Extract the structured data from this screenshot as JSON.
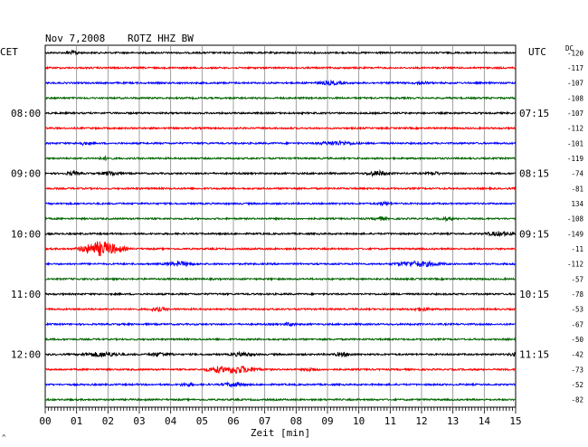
{
  "header": {
    "date": "Nov 7,2008",
    "station": "ROTZ HHZ BW",
    "left_zone": "CET",
    "right_zone": "UTC",
    "dc_label": "DC"
  },
  "chart_data": {
    "type": "line",
    "title": "Nov 7,2008   ROTZ HHZ BW",
    "xlabel": "Zeit [min]",
    "xlim": [
      0,
      15
    ],
    "x_ticks": [
      "00",
      "01",
      "02",
      "03",
      "04",
      "05",
      "06",
      "07",
      "08",
      "09",
      "10",
      "11",
      "12",
      "13",
      "14",
      "15"
    ],
    "row_count": 24,
    "row_minutes": 15,
    "trace_colors": [
      "#000000",
      "#ff0000",
      "#0000ff",
      "#006400"
    ],
    "left_hour_labels": [
      {
        "row": 4,
        "label": "08:00"
      },
      {
        "row": 8,
        "label": "09:00"
      },
      {
        "row": 12,
        "label": "10:00"
      },
      {
        "row": 16,
        "label": "11:00"
      },
      {
        "row": 20,
        "label": "12:00"
      }
    ],
    "right_hour_labels": [
      {
        "row": 4,
        "label": "07:15"
      },
      {
        "row": 8,
        "label": "08:15"
      },
      {
        "row": 12,
        "label": "09:15"
      },
      {
        "row": 16,
        "label": "10:15"
      },
      {
        "row": 20,
        "label": "11:15"
      }
    ],
    "dc_offsets": [
      "-120",
      "-117",
      "-107",
      "-108",
      "-107",
      "-112",
      "-101",
      "-119",
      "-74",
      "-81",
      "134",
      "-108",
      "-149",
      "-11",
      "-112",
      "-57",
      "-78",
      "-53",
      "-67",
      "-50",
      "-42",
      "-73",
      "-52",
      "-82"
    ],
    "events": [
      {
        "row": 0,
        "minute": 0.9,
        "amp": 1.8,
        "dur": 0.3
      },
      {
        "row": 2,
        "minute": 9.1,
        "amp": 1.6,
        "dur": 0.6
      },
      {
        "row": 2,
        "minute": 12.0,
        "amp": 1.6,
        "dur": 0.3
      },
      {
        "row": 6,
        "minute": 9.3,
        "amp": 2.0,
        "dur": 0.8
      },
      {
        "row": 6,
        "minute": 1.2,
        "amp": 1.4,
        "dur": 0.3
      },
      {
        "row": 7,
        "minute": 1.9,
        "amp": 1.4,
        "dur": 0.3
      },
      {
        "row": 8,
        "minute": 0.9,
        "amp": 1.8,
        "dur": 0.3
      },
      {
        "row": 8,
        "minute": 2.1,
        "amp": 2.0,
        "dur": 0.4
      },
      {
        "row": 8,
        "minute": 10.6,
        "amp": 2.4,
        "dur": 0.5
      },
      {
        "row": 8,
        "minute": 12.4,
        "amp": 1.6,
        "dur": 0.3
      },
      {
        "row": 10,
        "minute": 10.8,
        "amp": 1.6,
        "dur": 0.3
      },
      {
        "row": 11,
        "minute": 10.7,
        "amp": 1.6,
        "dur": 0.3
      },
      {
        "row": 11,
        "minute": 12.8,
        "amp": 1.5,
        "dur": 0.3
      },
      {
        "row": 12,
        "minute": 14.5,
        "amp": 2.2,
        "dur": 0.6
      },
      {
        "row": 13,
        "minute": 1.8,
        "amp": 8.0,
        "dur": 0.9
      },
      {
        "row": 14,
        "minute": 4.3,
        "amp": 2.2,
        "dur": 0.6
      },
      {
        "row": 14,
        "minute": 11.9,
        "amp": 2.8,
        "dur": 1.0
      },
      {
        "row": 17,
        "minute": 3.6,
        "amp": 1.8,
        "dur": 0.4
      },
      {
        "row": 17,
        "minute": 12.0,
        "amp": 1.6,
        "dur": 0.4
      },
      {
        "row": 18,
        "minute": 7.8,
        "amp": 1.4,
        "dur": 0.3
      },
      {
        "row": 20,
        "minute": 1.8,
        "amp": 2.4,
        "dur": 0.8
      },
      {
        "row": 20,
        "minute": 3.7,
        "amp": 1.8,
        "dur": 0.5
      },
      {
        "row": 20,
        "minute": 6.3,
        "amp": 2.0,
        "dur": 0.5
      },
      {
        "row": 20,
        "minute": 9.5,
        "amp": 1.8,
        "dur": 0.4
      },
      {
        "row": 20,
        "minute": 15.0,
        "amp": 2.0,
        "dur": 0.3
      },
      {
        "row": 21,
        "minute": 5.5,
        "amp": 3.2,
        "dur": 0.5
      },
      {
        "row": 21,
        "minute": 6.1,
        "amp": 4.0,
        "dur": 0.9
      },
      {
        "row": 21,
        "minute": 8.5,
        "amp": 1.6,
        "dur": 0.3
      },
      {
        "row": 22,
        "minute": 6.0,
        "amp": 2.0,
        "dur": 0.5
      },
      {
        "row": 22,
        "minute": 4.5,
        "amp": 1.4,
        "dur": 0.3
      }
    ]
  }
}
